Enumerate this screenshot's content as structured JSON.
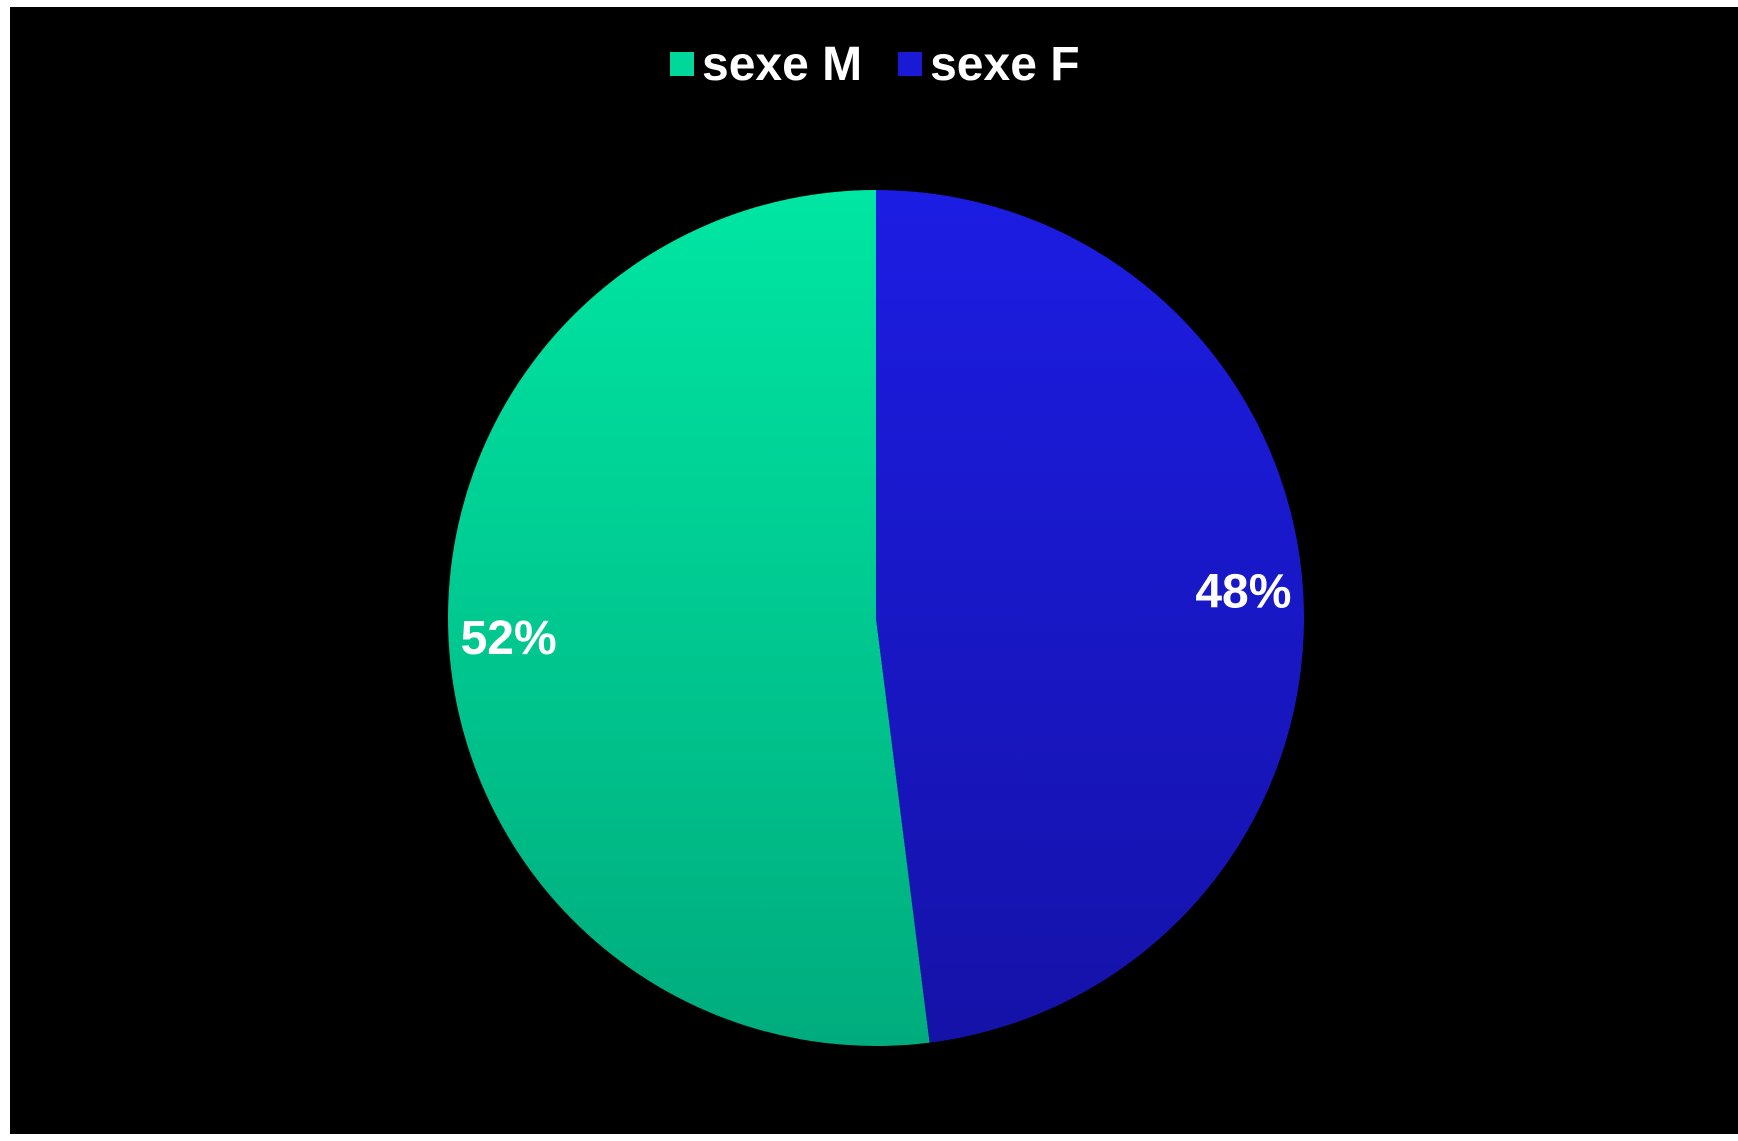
{
  "chart_data": {
    "type": "pie",
    "categories": [
      "sexe M",
      "sexe F"
    ],
    "values": [
      52,
      48
    ],
    "value_labels": [
      "52%",
      "48%"
    ],
    "colors": [
      "#00d79b",
      "#1a1ad6"
    ],
    "title": "",
    "legend_position": "top"
  },
  "colors": {
    "background": "#000000",
    "label_text": "#ffffff"
  }
}
